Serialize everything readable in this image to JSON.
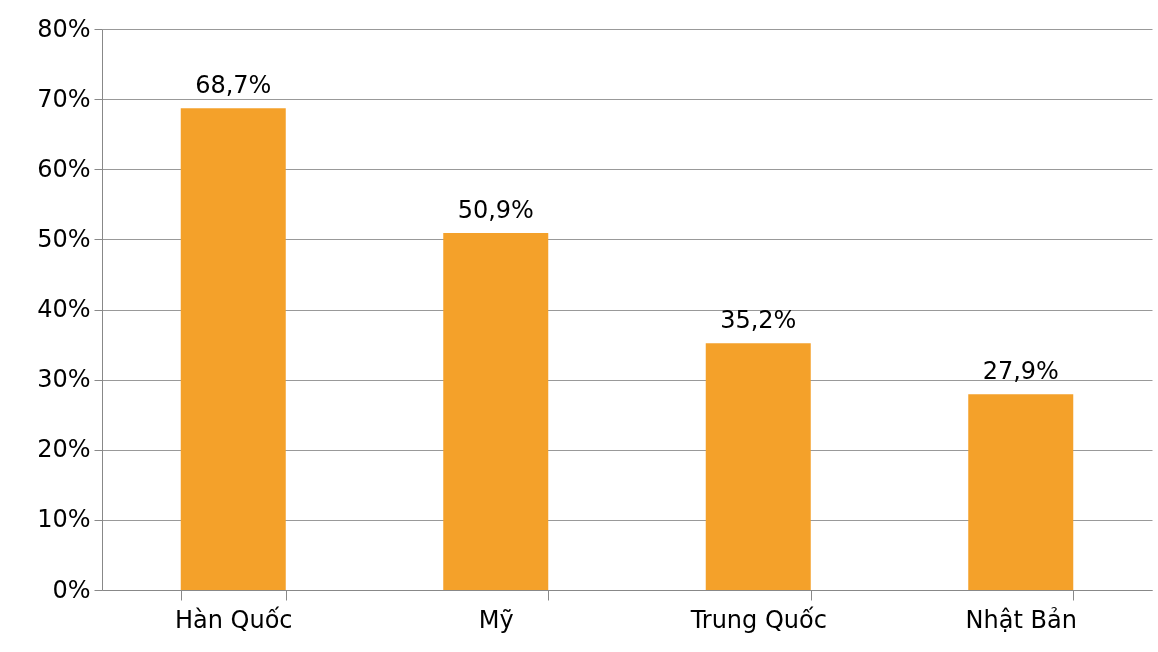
{
  "chart_data": {
    "type": "bar",
    "categories": [
      "Hàn Quốc",
      "Mỹ",
      "Trung Quốc",
      "Nhật Bản"
    ],
    "values": [
      68.7,
      50.9,
      35.2,
      27.9
    ],
    "value_labels": [
      "68,7%",
      "50,9%",
      "35,2%",
      "27,9%"
    ],
    "color": "#f4a12a",
    "ylim": [
      0,
      80
    ],
    "yticks": [
      {
        "value": 0,
        "label": "0%"
      },
      {
        "value": 10,
        "label": "10%"
      },
      {
        "value": 20,
        "label": "20%"
      },
      {
        "value": 30,
        "label": "30%"
      },
      {
        "value": 40,
        "label": "40%"
      },
      {
        "value": 50,
        "label": "50%"
      },
      {
        "value": 60,
        "label": "60%"
      },
      {
        "value": 70,
        "label": "70%"
      },
      {
        "value": 80,
        "label": "80%"
      }
    ],
    "grid": "y"
  }
}
